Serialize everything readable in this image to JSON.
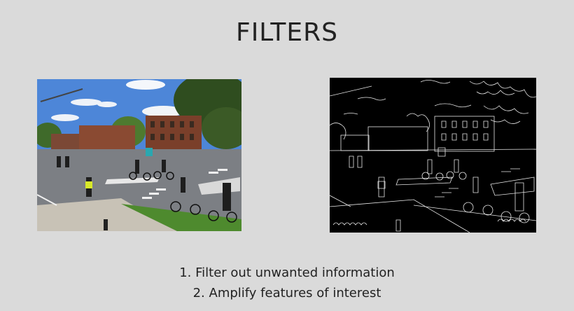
{
  "slide": {
    "title": "FILTERS",
    "points": [
      "1. Filter out unwanted information",
      "2. Amplify features of interest"
    ]
  },
  "images": {
    "original": "street-photo",
    "filtered": "edge-detected-photo"
  }
}
